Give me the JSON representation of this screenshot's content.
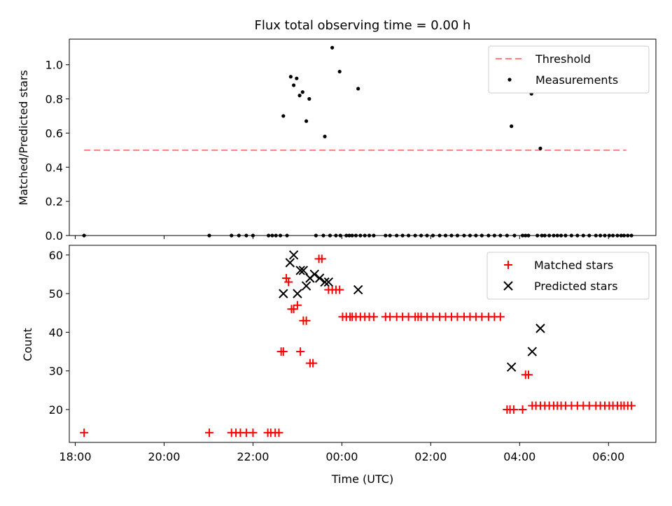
{
  "title": "Flux total observing time = 0.00 h",
  "chart_data": [
    {
      "type": "scatter",
      "panel": "top",
      "xlabel": "",
      "ylabel": "Matched/Predicted stars",
      "xlim": [
        "17:52",
        "07:04"
      ],
      "ylim": [
        0,
        1.15
      ],
      "yticks": [
        "0.0",
        "0.2",
        "0.4",
        "0.6",
        "0.8",
        "1.0"
      ],
      "legend": {
        "placement": "top-right",
        "entries": [
          "Threshold",
          "Measurements"
        ]
      },
      "threshold": {
        "name": "Threshold",
        "value": 0.5,
        "x": [
          "18:12",
          "06:24"
        ],
        "color": "#ff7f7f"
      },
      "series": [
        {
          "name": "Measurements",
          "color": "#000000",
          "x": [
            "22:41",
            "22:51",
            "22:55",
            "22:59",
            "23:03",
            "23:07",
            "23:12",
            "23:16",
            "23:37",
            "23:47",
            "23:57",
            "00:22",
            "03:49",
            "04:16",
            "04:28",
            "18:12",
            "21:01",
            "21:31",
            "21:41",
            "21:51",
            "22:00",
            "22:21",
            "22:26",
            "22:31",
            "22:37",
            "22:46",
            "23:25",
            "23:35",
            "23:44",
            "23:52",
            "23:58",
            "00:06",
            "00:10",
            "00:14",
            "00:19",
            "00:25",
            "00:31",
            "00:37",
            "00:43",
            "00:59",
            "01:05",
            "01:14",
            "01:22",
            "01:30",
            "01:39",
            "01:47",
            "01:55",
            "02:03",
            "02:12",
            "02:20",
            "02:28",
            "02:36",
            "02:45",
            "02:53",
            "03:01",
            "03:09",
            "03:18",
            "03:26",
            "03:34",
            "03:43",
            "03:53",
            "04:04",
            "04:08",
            "04:12",
            "04:24",
            "04:30",
            "04:34",
            "04:40",
            "04:46",
            "04:51",
            "04:56",
            "05:02",
            "05:10",
            "05:18",
            "05:26",
            "05:34",
            "05:43",
            "05:49",
            "05:55",
            "06:01",
            "06:06",
            "06:12",
            "06:17",
            "06:21",
            "06:26",
            "06:31"
          ],
          "y": [
            0.7,
            0.93,
            0.88,
            0.92,
            0.82,
            0.84,
            0.67,
            0.8,
            0.58,
            1.1,
            0.96,
            0.86,
            0.64,
            0.83,
            0.51,
            0,
            0,
            0,
            0,
            0,
            0,
            0,
            0,
            0,
            0,
            0,
            0,
            0,
            0,
            0,
            0,
            0,
            0,
            0,
            0,
            0,
            0,
            0,
            0,
            0,
            0,
            0,
            0,
            0,
            0,
            0,
            0,
            0,
            0,
            0,
            0,
            0,
            0,
            0,
            0,
            0,
            0,
            0,
            0,
            0,
            0,
            0,
            0,
            0,
            0,
            0,
            0,
            0,
            0,
            0,
            0,
            0,
            0,
            0,
            0,
            0,
            0,
            0,
            0,
            0,
            0,
            0,
            0,
            0,
            0,
            0
          ]
        }
      ]
    },
    {
      "type": "scatter",
      "panel": "bottom",
      "xlabel": "Time (UTC)",
      "ylabel": "Count",
      "xlim": [
        "17:52",
        "07:04"
      ],
      "ylim": [
        11.5,
        62.5
      ],
      "yticks": [
        "20",
        "30",
        "40",
        "50",
        "60"
      ],
      "xticks": [
        "18:00",
        "20:00",
        "22:00",
        "00:00",
        "02:00",
        "04:00",
        "06:00"
      ],
      "legend": {
        "placement": "top-right",
        "entries": [
          "Matched stars",
          "Predicted stars"
        ]
      },
      "series": [
        {
          "name": "Matched stars",
          "marker": "plus",
          "color": "#ff0000",
          "x": [
            "18:12",
            "21:01",
            "21:31",
            "21:37",
            "21:43",
            "21:51",
            "22:00",
            "22:20",
            "22:24",
            "22:30",
            "22:35",
            "22:38",
            "22:41",
            "22:45",
            "22:48",
            "22:52",
            "22:55",
            "23:00",
            "23:04",
            "23:08",
            "23:12",
            "23:17",
            "23:21",
            "23:29",
            "23:33",
            "23:42",
            "23:47",
            "23:52",
            "23:57",
            "00:01",
            "00:06",
            "00:11",
            "00:14",
            "00:19",
            "00:25",
            "00:31",
            "00:37",
            "00:43",
            "00:59",
            "01:05",
            "01:14",
            "01:22",
            "01:30",
            "01:39",
            "01:43",
            "01:47",
            "01:55",
            "02:03",
            "02:12",
            "02:20",
            "02:28",
            "02:36",
            "02:45",
            "02:53",
            "03:01",
            "03:09",
            "03:18",
            "03:26",
            "03:34",
            "03:43",
            "03:47",
            "03:52",
            "04:04",
            "04:08",
            "04:12",
            "04:17",
            "04:22",
            "04:28",
            "04:34",
            "04:40",
            "04:46",
            "04:51",
            "04:56",
            "05:02",
            "05:10",
            "05:18",
            "05:26",
            "05:34",
            "05:43",
            "05:49",
            "05:55",
            "06:01",
            "06:06",
            "06:12",
            "06:17",
            "06:21",
            "06:26",
            "06:31"
          ],
          "y": [
            14,
            14,
            14,
            14,
            14,
            14,
            14,
            14,
            14,
            14,
            14,
            35,
            35,
            54,
            53,
            46,
            46,
            47,
            35,
            43,
            43,
            32,
            32,
            59,
            59,
            51,
            51,
            51,
            51,
            44,
            44,
            44,
            44,
            44,
            44,
            44,
            44,
            44,
            44,
            44,
            44,
            44,
            44,
            44,
            44,
            44,
            44,
            44,
            44,
            44,
            44,
            44,
            44,
            44,
            44,
            44,
            44,
            44,
            44,
            20,
            20,
            20,
            20,
            29,
            29,
            21,
            21,
            21,
            21,
            21,
            21,
            21,
            21,
            21,
            21,
            21,
            21,
            21,
            21,
            21,
            21,
            21,
            21,
            21,
            21,
            21,
            21,
            21
          ]
        },
        {
          "name": "Predicted stars",
          "marker": "x",
          "color": "#000000",
          "x": [
            "22:41",
            "22:50",
            "22:55",
            "23:00",
            "23:04",
            "23:08",
            "23:12",
            "23:17",
            "23:23",
            "23:30",
            "23:37",
            "23:42",
            "00:22",
            "03:49",
            "04:17",
            "04:28"
          ],
          "y": [
            50,
            58,
            60,
            50,
            56,
            56,
            52,
            54,
            55,
            54,
            53,
            53,
            51,
            31,
            35,
            41
          ]
        }
      ]
    }
  ]
}
